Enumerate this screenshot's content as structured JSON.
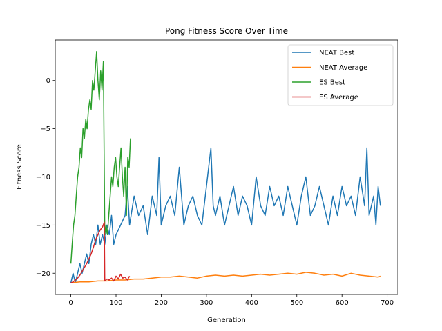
{
  "chart_data": {
    "type": "line",
    "title": "Pong Fitness Score Over Time",
    "xlabel": "Generation",
    "ylabel": "Fitness Score",
    "xlim": [
      -34.5,
      723.5
    ],
    "ylim": [
      -22.2,
      4.2
    ],
    "xticks": [
      0,
      100,
      200,
      300,
      400,
      500,
      600,
      700
    ],
    "yticks": [
      -20,
      -15,
      -10,
      -5,
      0
    ],
    "grid": false,
    "legend_position": "top-right",
    "series": [
      {
        "name": "NEAT Best",
        "color": "#1f77b4",
        "x": [
          0,
          5,
          10,
          15,
          20,
          25,
          30,
          35,
          40,
          45,
          50,
          55,
          60,
          65,
          70,
          75,
          80,
          85,
          90,
          95,
          100,
          110,
          120,
          125,
          130,
          140,
          150,
          160,
          170,
          180,
          190,
          195,
          200,
          210,
          220,
          230,
          240,
          250,
          260,
          270,
          280,
          290,
          300,
          310,
          315,
          320,
          330,
          340,
          350,
          360,
          370,
          380,
          390,
          400,
          410,
          420,
          430,
          440,
          450,
          460,
          470,
          480,
          490,
          500,
          510,
          520,
          530,
          540,
          550,
          560,
          570,
          580,
          590,
          600,
          610,
          620,
          630,
          640,
          650,
          655,
          660,
          670,
          675,
          680,
          685
        ],
        "values": [
          -21,
          -20,
          -21,
          -20,
          -19,
          -20,
          -19,
          -18,
          -19,
          -17,
          -16,
          -17,
          -15,
          -17,
          -16,
          -17,
          -15,
          -16,
          -14,
          -17,
          -16,
          -15,
          -14,
          -11,
          -15,
          -12,
          -14,
          -13,
          -16,
          -12,
          -14,
          -8,
          -15,
          -13,
          -12,
          -14,
          -9,
          -15,
          -13,
          -12,
          -14,
          -15,
          -11,
          -7,
          -13,
          -14,
          -12,
          -15,
          -13,
          -11,
          -14,
          -12,
          -13,
          -15,
          -10,
          -13,
          -14,
          -11,
          -13,
          -12,
          -14,
          -11,
          -13,
          -15,
          -12,
          -10,
          -14,
          -13,
          -11,
          -13,
          -15,
          -12,
          -14,
          -11,
          -13,
          -12,
          -14,
          -10,
          -13,
          -7,
          -14,
          -12,
          -15,
          -11,
          -13
        ]
      },
      {
        "name": "NEAT Average",
        "color": "#ff7f0e",
        "x": [
          0,
          20,
          40,
          60,
          80,
          100,
          120,
          140,
          160,
          180,
          200,
          220,
          240,
          260,
          280,
          300,
          320,
          340,
          360,
          380,
          400,
          420,
          440,
          460,
          480,
          500,
          520,
          540,
          560,
          580,
          600,
          620,
          640,
          660,
          680,
          685
        ],
        "values": [
          -21,
          -20.9,
          -20.9,
          -20.8,
          -20.8,
          -20.7,
          -20.7,
          -20.6,
          -20.6,
          -20.5,
          -20.4,
          -20.4,
          -20.3,
          -20.4,
          -20.5,
          -20.3,
          -20.2,
          -20.3,
          -20.2,
          -20.3,
          -20.2,
          -20.1,
          -20.2,
          -20.1,
          -20.0,
          -20.1,
          -19.9,
          -20.0,
          -20.2,
          -20.1,
          -20.3,
          -20.0,
          -20.2,
          -20.3,
          -20.4,
          -20.3
        ]
      },
      {
        "name": "ES Best",
        "color": "#2ca02c",
        "x": [
          0,
          3,
          6,
          9,
          12,
          15,
          18,
          21,
          24,
          27,
          30,
          33,
          36,
          39,
          42,
          45,
          48,
          51,
          54,
          57,
          60,
          63,
          66,
          69,
          72,
          75,
          78,
          81,
          84,
          87,
          90,
          93,
          96,
          99,
          102,
          105,
          108,
          111,
          114,
          117,
          120,
          123,
          126,
          129,
          132
        ],
        "values": [
          -19,
          -17,
          -15,
          -14,
          -12,
          -10,
          -9,
          -7,
          -8,
          -5,
          -6,
          -4,
          -5,
          -3,
          -2,
          -3,
          0,
          -1,
          1,
          3,
          0,
          -2,
          1,
          -1,
          2,
          -16,
          -15,
          -16,
          -14,
          -12,
          -10,
          -11,
          -9,
          -8,
          -10,
          -11,
          -9,
          -7,
          -10,
          -12,
          -9,
          -14,
          -8,
          -9,
          -6
        ]
      },
      {
        "name": "ES Average",
        "color": "#d62728",
        "x": [
          0,
          5,
          10,
          15,
          20,
          25,
          30,
          35,
          40,
          45,
          50,
          55,
          60,
          65,
          70,
          74,
          75,
          80,
          85,
          90,
          95,
          100,
          105,
          110,
          115,
          120,
          125,
          130
        ],
        "values": [
          -21,
          -20.9,
          -20.7,
          -20.5,
          -20.2,
          -19.8,
          -19.4,
          -19.0,
          -18.5,
          -18.0,
          -17.3,
          -16.5,
          -16.0,
          -15.5,
          -15.2,
          -14.7,
          -20.8,
          -20.6,
          -20.7,
          -20.5,
          -20.8,
          -20.3,
          -20.6,
          -20.1,
          -20.5,
          -20.4,
          -20.7,
          -20.3
        ]
      }
    ]
  }
}
